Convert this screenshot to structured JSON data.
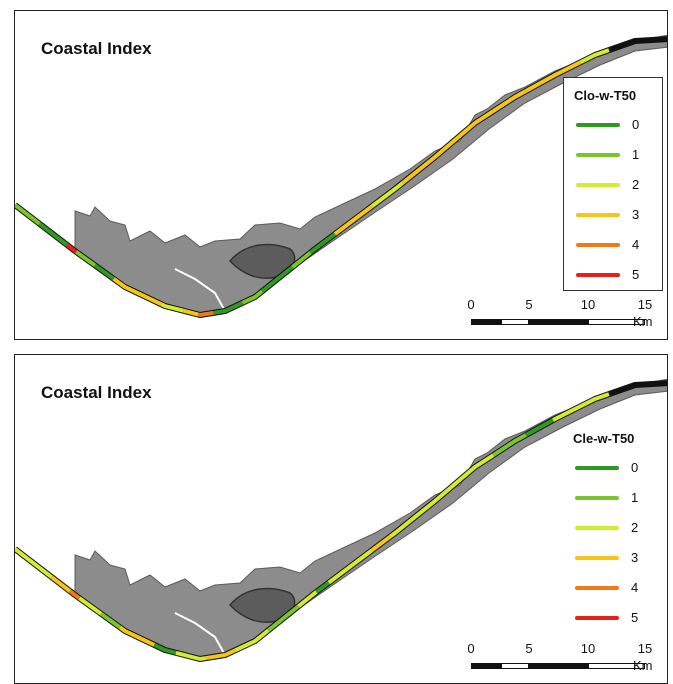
{
  "panels": [
    {
      "title": "Coastal Index",
      "legend_title": "Clo-w-T50",
      "legend_boxed": true,
      "coast_segments": [
        {
          "from": 0.0,
          "to": 0.04,
          "class": 1
        },
        {
          "from": 0.04,
          "to": 0.085,
          "class": 0
        },
        {
          "from": 0.085,
          "to": 0.1,
          "class": 5
        },
        {
          "from": 0.1,
          "to": 0.13,
          "class": 1
        },
        {
          "from": 0.13,
          "to": 0.16,
          "class": 0
        },
        {
          "from": 0.16,
          "to": 0.23,
          "class": 3
        },
        {
          "from": 0.23,
          "to": 0.26,
          "class": 2
        },
        {
          "from": 0.26,
          "to": 0.28,
          "class": 3
        },
        {
          "from": 0.28,
          "to": 0.3,
          "class": 4
        },
        {
          "from": 0.3,
          "to": 0.34,
          "class": 0
        },
        {
          "from": 0.34,
          "to": 0.37,
          "class": 1
        },
        {
          "from": 0.37,
          "to": 0.42,
          "class": 0
        },
        {
          "from": 0.42,
          "to": 0.45,
          "class": 1
        },
        {
          "from": 0.45,
          "to": 0.49,
          "class": 0
        },
        {
          "from": 0.49,
          "to": 0.55,
          "class": 3
        },
        {
          "from": 0.55,
          "to": 0.6,
          "class": 2
        },
        {
          "from": 0.6,
          "to": 0.8,
          "class": 3
        },
        {
          "from": 0.8,
          "to": 0.88,
          "class": 3
        },
        {
          "from": 0.88,
          "to": 0.92,
          "class": 2
        }
      ]
    },
    {
      "title": "Coastal Index",
      "legend_title": "Cle-w-T50",
      "legend_boxed": false,
      "coast_segments": [
        {
          "from": 0.0,
          "to": 0.06,
          "class": 2
        },
        {
          "from": 0.06,
          "to": 0.09,
          "class": 3
        },
        {
          "from": 0.09,
          "to": 0.105,
          "class": 4
        },
        {
          "from": 0.105,
          "to": 0.14,
          "class": 2
        },
        {
          "from": 0.14,
          "to": 0.17,
          "class": 1
        },
        {
          "from": 0.17,
          "to": 0.22,
          "class": 3
        },
        {
          "from": 0.22,
          "to": 0.25,
          "class": 0
        },
        {
          "from": 0.25,
          "to": 0.29,
          "class": 2
        },
        {
          "from": 0.29,
          "to": 0.33,
          "class": 3
        },
        {
          "from": 0.33,
          "to": 0.38,
          "class": 2
        },
        {
          "from": 0.38,
          "to": 0.43,
          "class": 1
        },
        {
          "from": 0.43,
          "to": 0.46,
          "class": 2
        },
        {
          "from": 0.46,
          "to": 0.48,
          "class": 0
        },
        {
          "from": 0.48,
          "to": 0.55,
          "class": 2
        },
        {
          "from": 0.55,
          "to": 0.58,
          "class": 3
        },
        {
          "from": 0.58,
          "to": 0.75,
          "class": 2
        },
        {
          "from": 0.75,
          "to": 0.8,
          "class": 1
        },
        {
          "from": 0.8,
          "to": 0.84,
          "class": 0
        },
        {
          "from": 0.84,
          "to": 0.92,
          "class": 2
        }
      ]
    }
  ],
  "legend_classes": [
    {
      "label": "0",
      "color": "#2e9a1f"
    },
    {
      "label": "1",
      "color": "#7ac62a"
    },
    {
      "label": "2",
      "color": "#d4ec2e"
    },
    {
      "label": "3",
      "color": "#f5c518"
    },
    {
      "label": "4",
      "color": "#f07a18"
    },
    {
      "label": "5",
      "color": "#e8201a"
    }
  ],
  "scale": {
    "ticks": [
      "0",
      "5",
      "10",
      "15"
    ],
    "unit": "Km"
  }
}
